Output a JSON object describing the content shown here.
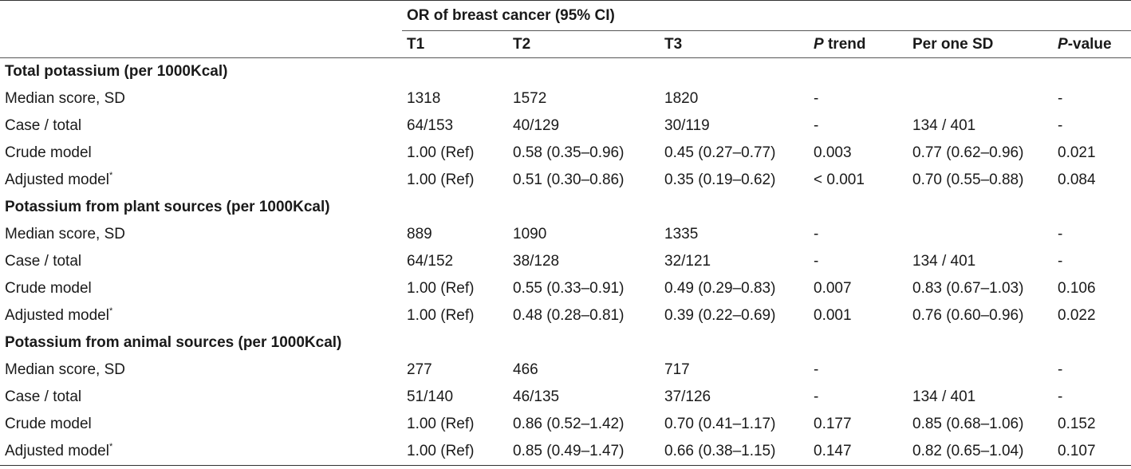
{
  "header": {
    "group_label": "OR of breast cancer (95% CI)",
    "columns": {
      "t1": "T1",
      "t2": "T2",
      "t3": "T3",
      "p_trend_italic": "P",
      "p_trend_rest": " trend",
      "per_sd": "Per one SD",
      "p_value_italic": "P",
      "p_value_rest": "-value"
    }
  },
  "footnote_marker": "*",
  "sections": [
    {
      "title": "Total potassium (per 1000Kcal)",
      "rows": [
        {
          "label": "Median score, SD",
          "t1": "1318",
          "t2": "1572",
          "t3": "1820",
          "p_trend": "-",
          "per_sd": "",
          "p_value": "-"
        },
        {
          "label": "Case / total",
          "t1": "64/153",
          "t2": "40/129",
          "t3": "30/119",
          "p_trend": "-",
          "per_sd": "134 / 401",
          "p_value": "-"
        },
        {
          "label": "Crude model",
          "t1": "1.00 (Ref)",
          "t2": "0.58 (0.35–0.96)",
          "t3": "0.45 (0.27–0.77)",
          "p_trend": "0.003",
          "per_sd": "0.77 (0.62–0.96)",
          "p_value": "0.021"
        },
        {
          "label": "Adjusted model",
          "t1": "1.00 (Ref)",
          "t2": "0.51 (0.30–0.86)",
          "t3": "0.35 (0.19–0.62)",
          "p_trend": "< 0.001",
          "per_sd": "0.70 (0.55–0.88)",
          "p_value": "0.084"
        }
      ]
    },
    {
      "title": "Potassium from plant sources (per 1000Kcal)",
      "rows": [
        {
          "label": "Median score, SD",
          "t1": "889",
          "t2": "1090",
          "t3": "1335",
          "p_trend": "-",
          "per_sd": "",
          "p_value": "-"
        },
        {
          "label": "Case / total",
          "t1": "64/152",
          "t2": "38/128",
          "t3": "32/121",
          "p_trend": "-",
          "per_sd": "134 / 401",
          "p_value": "-"
        },
        {
          "label": "Crude model",
          "t1": "1.00 (Ref)",
          "t2": "0.55 (0.33–0.91)",
          "t3": "0.49 (0.29–0.83)",
          "p_trend": "0.007",
          "per_sd": "0.83 (0.67–1.03)",
          "p_value": "0.106"
        },
        {
          "label": "Adjusted model",
          "t1": "1.00 (Ref)",
          "t2": "0.48 (0.28–0.81)",
          "t3": "0.39 (0.22–0.69)",
          "p_trend": "0.001",
          "per_sd": "0.76 (0.60–0.96)",
          "p_value": "0.022"
        }
      ]
    },
    {
      "title": "Potassium from animal sources (per 1000Kcal)",
      "rows": [
        {
          "label": "Median score, SD",
          "t1": "277",
          "t2": "466",
          "t3": "717",
          "p_trend": "-",
          "per_sd": "",
          "p_value": "-"
        },
        {
          "label": "Case / total",
          "t1": "51/140",
          "t2": "46/135",
          "t3": "37/126",
          "p_trend": "-",
          "per_sd": "134 / 401",
          "p_value": "-"
        },
        {
          "label": "Crude model",
          "t1": "1.00 (Ref)",
          "t2": "0.86 (0.52–1.42)",
          "t3": "0.70 (0.41–1.17)",
          "p_trend": "0.177",
          "per_sd": "0.85 (0.68–1.06)",
          "p_value": "0.152"
        },
        {
          "label": "Adjusted model",
          "t1": "1.00 (Ref)",
          "t2": "0.85 (0.49–1.47)",
          "t3": "0.66 (0.38–1.15)",
          "p_trend": "0.147",
          "per_sd": "0.82 (0.65–1.04)",
          "p_value": "0.107"
        }
      ]
    }
  ]
}
